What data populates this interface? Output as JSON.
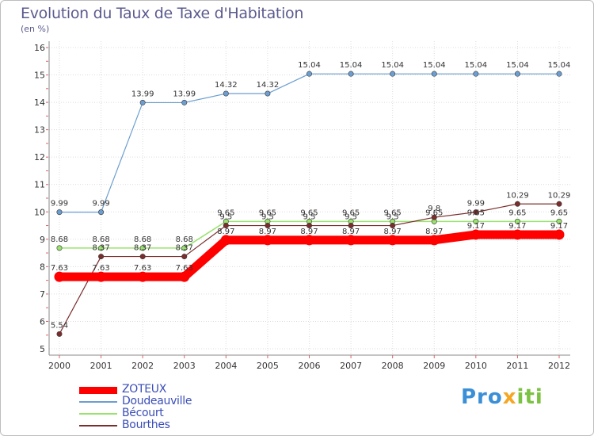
{
  "chart_data": {
    "type": "line",
    "title": "Evolution du Taux de Taxe d'Habitation",
    "ylabel": "(en %)",
    "xlabel": "",
    "categories": [
      "2000",
      "2001",
      "2002",
      "2003",
      "2004",
      "2005",
      "2006",
      "2007",
      "2008",
      "2009",
      "2010",
      "2011",
      "2012"
    ],
    "ylim": [
      5,
      16
    ],
    "yticks": [
      "5",
      "6",
      "7",
      "8",
      "9",
      "10",
      "11",
      "12",
      "13",
      "14",
      "15",
      "16"
    ],
    "grid": true,
    "legend_position": "bottom-left",
    "series": [
      {
        "name": "ZOTEUX",
        "color": "#ff0000",
        "values": [
          7.63,
          7.63,
          7.63,
          7.63,
          8.97,
          8.97,
          8.97,
          8.97,
          8.97,
          8.97,
          9.17,
          9.17,
          9.17
        ],
        "labels": [
          "7.63",
          "7.63",
          "7.63",
          "7.63",
          "8.97",
          "8.97",
          "8.97",
          "8.97",
          "8.97",
          "8.97",
          "9.17",
          "9.17",
          "9.17"
        ]
      },
      {
        "name": "Doudeauville",
        "color": "#6c9ed0",
        "values": [
          9.99,
          9.99,
          13.99,
          13.99,
          14.32,
          14.32,
          15.04,
          15.04,
          15.04,
          15.04,
          15.04,
          15.04,
          15.04
        ],
        "labels": [
          "9.99",
          "9.99",
          "13.99",
          "13.99",
          "14.32",
          "14.32",
          "15.04",
          "15.04",
          "15.04",
          "15.04",
          "15.04",
          "15.04",
          "15.04"
        ]
      },
      {
        "name": "Bécourt",
        "color": "#99e26e",
        "values": [
          8.68,
          8.68,
          8.68,
          8.68,
          9.65,
          9.65,
          9.65,
          9.65,
          9.65,
          9.65,
          9.65,
          9.65,
          9.65
        ],
        "labels": [
          "8.68",
          "8.68",
          "8.68",
          "8.68",
          "9.65",
          "9.65",
          "9.65",
          "9.65",
          "9.65",
          "9.65",
          "9.65",
          "9.65",
          "9.65"
        ]
      },
      {
        "name": "Bourthes",
        "color": "#7b2c2c",
        "values": [
          5.54,
          8.37,
          8.37,
          8.37,
          9.5,
          9.5,
          9.5,
          9.5,
          9.5,
          9.8,
          9.99,
          10.29,
          10.29
        ],
        "labels": [
          "5.54",
          "8.37",
          "8.37",
          "8.37",
          "9.5",
          "9.5",
          "9.5",
          "9.5",
          "9.5",
          "9.8",
          "9.99",
          "10.29",
          "10.29"
        ]
      }
    ]
  },
  "brand": {
    "part1": "Pro",
    "part2": "x",
    "part3": "iti"
  }
}
